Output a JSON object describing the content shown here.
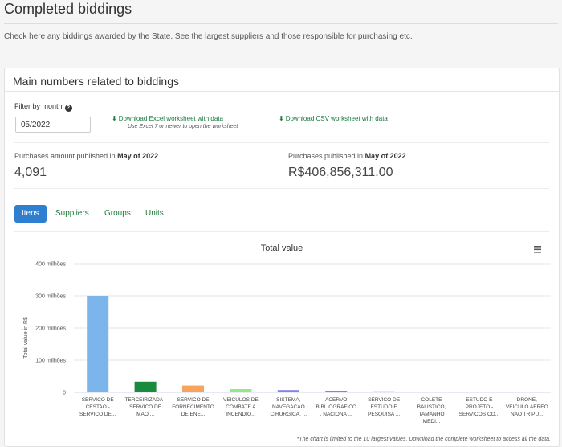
{
  "page": {
    "title": "Completed biddings",
    "description": "Check here any biddings awarded by the State. See the largest suppliers and those responsible for purchasing etc."
  },
  "panel": {
    "title": "Main numbers related to biddings",
    "filter_label": "Filter by month",
    "month_value": "05/2022",
    "download_excel": "Download Excel worksheet with data",
    "download_excel_note": "Use Excel 7 or newer to open the worksheet",
    "download_csv": "Download CSV worksheet with data"
  },
  "stats": {
    "amount_label_prefix": "Purchases amount published in ",
    "amount_label_month": "May of 2022",
    "amount_value": "4,091",
    "published_label_prefix": "Purchases published in ",
    "published_label_month": "May of 2022",
    "published_value": "R$406,856,311.00"
  },
  "tabs": [
    {
      "label": "Itens",
      "active": true
    },
    {
      "label": "Suppliers",
      "active": false
    },
    {
      "label": "Groups",
      "active": false
    },
    {
      "label": "Units",
      "active": false
    }
  ],
  "chart_data": {
    "type": "bar",
    "title": "Total value",
    "ylabel": "Total value in R$",
    "xlabel": "",
    "ylim": [
      0,
      400000000
    ],
    "yticks": [
      0,
      100000000,
      200000000,
      300000000,
      400000000
    ],
    "ytick_labels": [
      "0",
      "100 milhões",
      "200 milhões",
      "300 milhões",
      "400 milhões"
    ],
    "grid": true,
    "legend": "none",
    "categories": [
      [
        "SERVICO DE",
        "CESTAO -",
        "SERVICO DE..."
      ],
      [
        "TERCEIRIZADA -",
        "SERVICO DE",
        "MAO ..."
      ],
      [
        "SERVICO DE",
        "FORNECIMENTO",
        "DE ENE..."
      ],
      [
        "VEICULOS DE",
        "COMBATE A",
        "INCENDIO..."
      ],
      [
        "SISTEMA,",
        "NAVEGACAO",
        "CIRURGICA, ..."
      ],
      [
        "ACERVO",
        "BIBLIOGRAFICO",
        ", NACIONA ..."
      ],
      [
        "SERVICO DE",
        "ESTUDO E",
        "PESQUISA ..."
      ],
      [
        "COLETE",
        "BALISTICO,",
        "TAMANHO",
        "MEDI..."
      ],
      [
        "ESTUDO E",
        "PROJETO -",
        "SERVICOS CO..."
      ],
      [
        "DRONE,",
        "VEICULO AEREO",
        "NAO TRIPU..."
      ]
    ],
    "values": [
      300000000,
      33000000,
      21000000,
      10000000,
      7000000,
      5000000,
      3500000,
      2500000,
      1500000,
      800000
    ],
    "colors": [
      "#7cb5ec",
      "#1a8a3c",
      "#f7a35c",
      "#90ed7d",
      "#8085e9",
      "#f15c80",
      "#e4d354",
      "#5b9bd5",
      "#f45b5b",
      "#91e8e1"
    ],
    "menu_icon": "hamburger-menu-icon",
    "footnote": "*The chart is limited to the 10 largest values. Download the complete worksheet to access all the data."
  }
}
